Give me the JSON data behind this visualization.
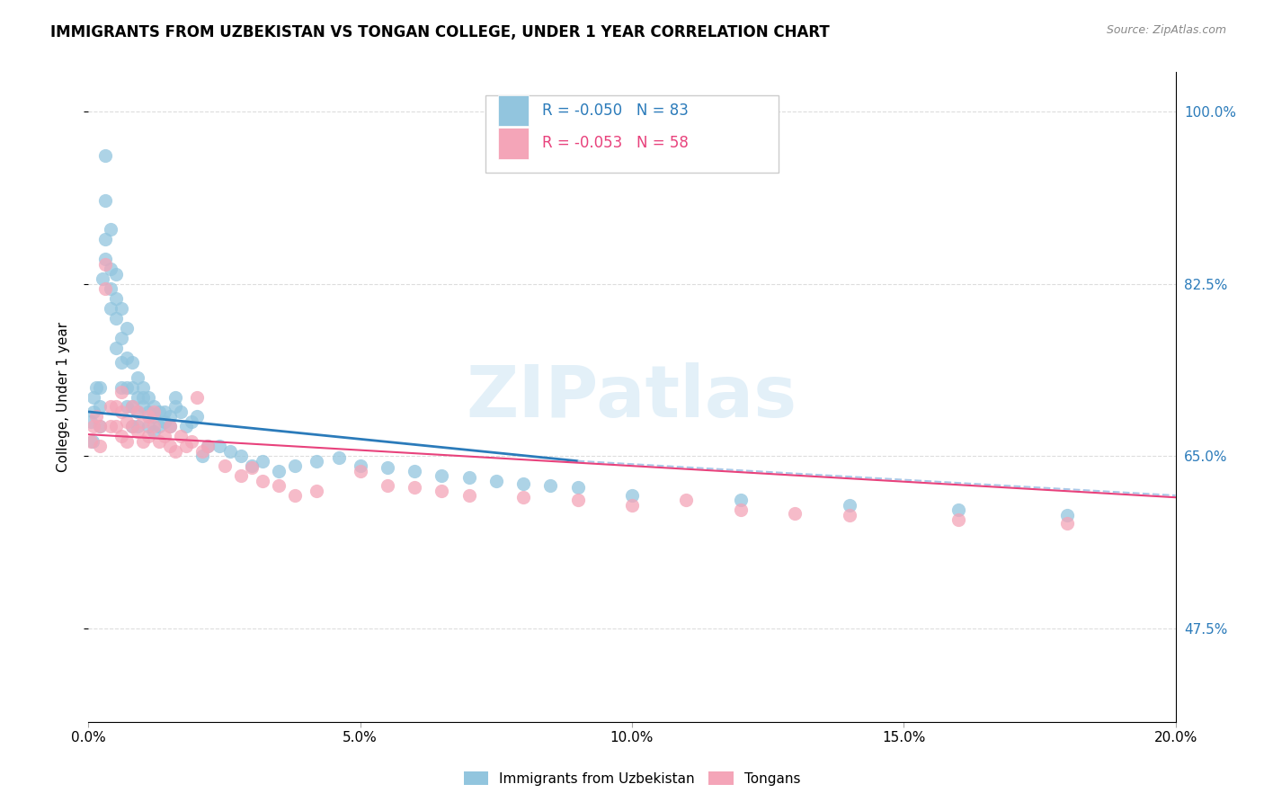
{
  "title": "IMMIGRANTS FROM UZBEKISTAN VS TONGAN COLLEGE, UNDER 1 YEAR CORRELATION CHART",
  "source": "Source: ZipAtlas.com",
  "ylabel": "College, Under 1 year",
  "ytick_labels": [
    "100.0%",
    "82.5%",
    "65.0%",
    "47.5%"
  ],
  "ytick_values": [
    1.0,
    0.825,
    0.65,
    0.475
  ],
  "legend_label1": "Immigrants from Uzbekistan",
  "legend_label2": "Tongans",
  "legend_R1": "-0.050",
  "legend_N1": "83",
  "legend_R2": "-0.053",
  "legend_N2": "58",
  "color_blue": "#92c5de",
  "color_pink": "#f4a5b8",
  "color_blue_line": "#2b7bba",
  "color_pink_line": "#e8427c",
  "color_dashed": "#aac8e8",
  "watermark": "ZIPatlas",
  "blue_x": [
    0.0005,
    0.0008,
    0.001,
    0.001,
    0.0015,
    0.002,
    0.002,
    0.002,
    0.0025,
    0.003,
    0.003,
    0.003,
    0.003,
    0.004,
    0.004,
    0.004,
    0.004,
    0.005,
    0.005,
    0.005,
    0.005,
    0.006,
    0.006,
    0.006,
    0.006,
    0.007,
    0.007,
    0.007,
    0.007,
    0.008,
    0.008,
    0.008,
    0.008,
    0.009,
    0.009,
    0.009,
    0.009,
    0.01,
    0.01,
    0.01,
    0.011,
    0.011,
    0.011,
    0.012,
    0.012,
    0.012,
    0.013,
    0.013,
    0.014,
    0.014,
    0.015,
    0.015,
    0.016,
    0.016,
    0.017,
    0.018,
    0.019,
    0.02,
    0.021,
    0.022,
    0.024,
    0.026,
    0.028,
    0.03,
    0.032,
    0.035,
    0.038,
    0.042,
    0.046,
    0.05,
    0.055,
    0.06,
    0.065,
    0.07,
    0.075,
    0.08,
    0.085,
    0.09,
    0.1,
    0.12,
    0.14,
    0.16,
    0.18
  ],
  "blue_y": [
    0.685,
    0.665,
    0.695,
    0.71,
    0.72,
    0.68,
    0.7,
    0.72,
    0.83,
    0.85,
    0.87,
    0.91,
    0.955,
    0.8,
    0.82,
    0.84,
    0.88,
    0.76,
    0.79,
    0.81,
    0.835,
    0.72,
    0.745,
    0.77,
    0.8,
    0.7,
    0.72,
    0.75,
    0.78,
    0.68,
    0.7,
    0.72,
    0.745,
    0.68,
    0.695,
    0.71,
    0.73,
    0.7,
    0.71,
    0.72,
    0.68,
    0.695,
    0.71,
    0.675,
    0.69,
    0.7,
    0.68,
    0.695,
    0.685,
    0.695,
    0.68,
    0.69,
    0.7,
    0.71,
    0.695,
    0.68,
    0.685,
    0.69,
    0.65,
    0.66,
    0.66,
    0.655,
    0.65,
    0.64,
    0.645,
    0.635,
    0.64,
    0.645,
    0.648,
    0.64,
    0.638,
    0.635,
    0.63,
    0.628,
    0.625,
    0.622,
    0.62,
    0.618,
    0.61,
    0.605,
    0.6,
    0.595,
    0.59
  ],
  "pink_x": [
    0.0005,
    0.001,
    0.0015,
    0.002,
    0.002,
    0.003,
    0.003,
    0.004,
    0.004,
    0.005,
    0.005,
    0.006,
    0.006,
    0.006,
    0.007,
    0.007,
    0.008,
    0.008,
    0.009,
    0.009,
    0.01,
    0.01,
    0.011,
    0.011,
    0.012,
    0.012,
    0.013,
    0.014,
    0.015,
    0.015,
    0.016,
    0.017,
    0.018,
    0.019,
    0.02,
    0.021,
    0.022,
    0.025,
    0.028,
    0.03,
    0.032,
    0.035,
    0.038,
    0.042,
    0.05,
    0.055,
    0.06,
    0.065,
    0.07,
    0.08,
    0.09,
    0.1,
    0.11,
    0.12,
    0.13,
    0.14,
    0.16,
    0.18
  ],
  "pink_y": [
    0.665,
    0.68,
    0.69,
    0.66,
    0.68,
    0.82,
    0.845,
    0.68,
    0.7,
    0.68,
    0.7,
    0.67,
    0.695,
    0.715,
    0.665,
    0.685,
    0.68,
    0.7,
    0.675,
    0.695,
    0.665,
    0.685,
    0.67,
    0.69,
    0.68,
    0.695,
    0.665,
    0.67,
    0.66,
    0.68,
    0.655,
    0.67,
    0.66,
    0.665,
    0.71,
    0.655,
    0.66,
    0.64,
    0.63,
    0.638,
    0.625,
    0.62,
    0.61,
    0.615,
    0.635,
    0.62,
    0.618,
    0.615,
    0.61,
    0.608,
    0.605,
    0.6,
    0.605,
    0.595,
    0.592,
    0.59,
    0.585,
    0.582
  ],
  "xmin": 0.0,
  "xmax": 0.2,
  "ymin": 0.38,
  "ymax": 1.04,
  "blue_trend_x": [
    0.0,
    0.09
  ],
  "blue_trend_y": [
    0.695,
    0.645
  ],
  "pink_trend_x": [
    0.0,
    0.2
  ],
  "pink_trend_y": [
    0.672,
    0.608
  ],
  "dashed_trend_x": [
    0.09,
    0.2
  ],
  "dashed_trend_y": [
    0.645,
    0.61
  ],
  "xtick_positions": [
    0.0,
    0.05,
    0.1,
    0.15,
    0.2
  ],
  "xtick_labels": [
    "0.0%",
    "5.0%",
    "10.0%",
    "15.0%",
    "20.0%"
  ]
}
